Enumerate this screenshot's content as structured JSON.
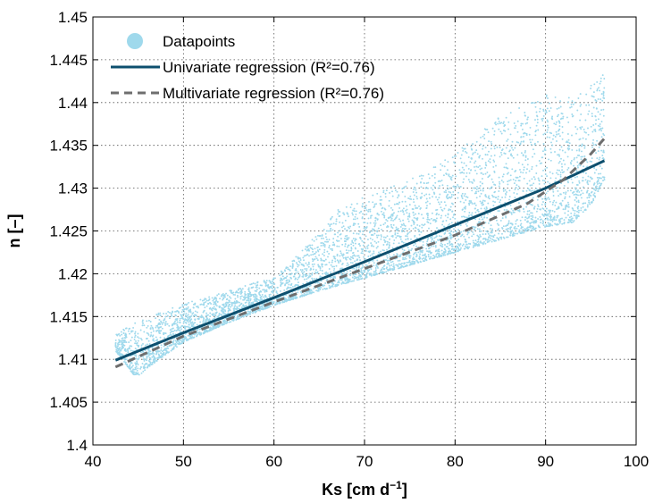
{
  "chart_data": {
    "type": "scatter",
    "xlabel": "Ks [cm d",
    "xlabel_sup": "−1",
    "xlabel_end": "]",
    "ylabel": "n [–]",
    "xlim": [
      40,
      100
    ],
    "ylim": [
      1.4,
      1.45
    ],
    "x_ticks": [
      40,
      50,
      60,
      70,
      80,
      90,
      100
    ],
    "x_tick_labels": [
      "40",
      "50",
      "60",
      "70",
      "80",
      "90",
      "100"
    ],
    "y_ticks": [
      1.4,
      1.405,
      1.41,
      1.415,
      1.42,
      1.425,
      1.43,
      1.435,
      1.44,
      1.445,
      1.45
    ],
    "y_tick_labels": [
      "1.4",
      "1.405",
      "1.41",
      "1.415",
      "1.42",
      "1.425",
      "1.43",
      "1.435",
      "1.44",
      "1.445",
      "1.45"
    ],
    "grid": true,
    "legend_position": "top-left",
    "scatter_region": {
      "lower_edge": [
        [
          42.5,
          1.411
        ],
        [
          44.5,
          1.4082
        ],
        [
          45.2,
          1.4082
        ],
        [
          46,
          1.409
        ],
        [
          48,
          1.4105
        ],
        [
          50,
          1.412
        ],
        [
          55,
          1.4143
        ],
        [
          60,
          1.4163
        ],
        [
          65,
          1.418
        ],
        [
          70,
          1.4195
        ],
        [
          75,
          1.421
        ],
        [
          80,
          1.4225
        ],
        [
          85,
          1.424
        ],
        [
          90,
          1.4255
        ],
        [
          93,
          1.426
        ],
        [
          95,
          1.428
        ],
        [
          96.5,
          1.431
        ]
      ],
      "upper_edge": [
        [
          42.5,
          1.413
        ],
        [
          45,
          1.4145
        ],
        [
          50,
          1.4165
        ],
        [
          55,
          1.418
        ],
        [
          58,
          1.419
        ],
        [
          60,
          1.4195
        ],
        [
          62,
          1.4215
        ],
        [
          65,
          1.425
        ],
        [
          67,
          1.4275
        ],
        [
          70,
          1.429
        ],
        [
          75,
          1.431
        ],
        [
          80,
          1.434
        ],
        [
          85,
          1.4385
        ],
        [
          90,
          1.441
        ],
        [
          93,
          1.4405
        ],
        [
          95,
          1.442
        ],
        [
          96.5,
          1.4435
        ]
      ],
      "point_count": 5000,
      "note_values": []
    },
    "series": [
      {
        "name": "Datapoints",
        "kind": "scatter",
        "color": "#9fd9ec"
      },
      {
        "name": "Univariate regression (R²=0.76)",
        "kind": "line",
        "color": "#0d4f6e",
        "dash": "solid",
        "x": [
          42.5,
          50,
          60,
          70,
          80,
          90,
          96.5
        ],
        "y": [
          1.4099,
          1.4131,
          1.4172,
          1.4214,
          1.4257,
          1.43,
          1.4332
        ]
      },
      {
        "name": "Multivariate regression (R²=0.76)",
        "kind": "line",
        "color": "#6e6e6e",
        "dash": "dashed",
        "x": [
          42.5,
          50,
          60,
          70,
          80,
          88,
          92,
          95,
          96.5
        ],
        "y": [
          1.4091,
          1.4127,
          1.4167,
          1.4206,
          1.4245,
          1.4282,
          1.431,
          1.434,
          1.4358
        ]
      }
    ]
  }
}
